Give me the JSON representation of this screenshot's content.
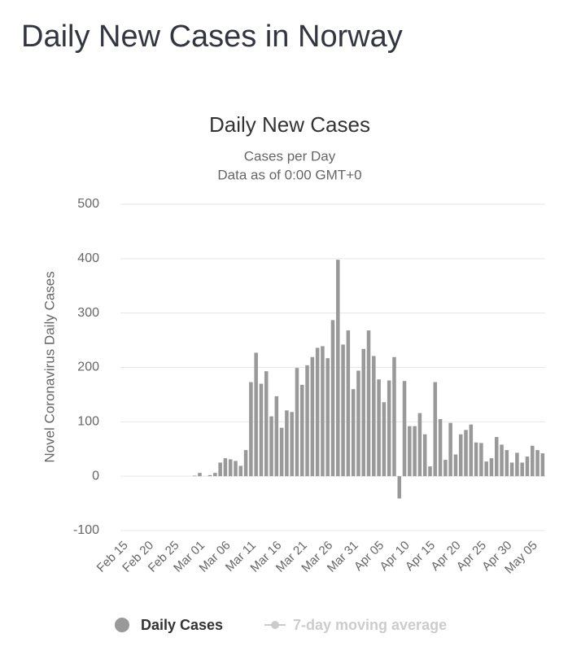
{
  "page_title": "Daily New Cases in Norway",
  "chart_data": {
    "type": "bar",
    "title": "Daily New Cases",
    "subtitle": [
      "Cases per Day",
      "Data as of 0:00 GMT+0"
    ],
    "y_label": "Novel Coronavirus Daily Cases",
    "categories": [
      "Feb 15",
      null,
      null,
      null,
      null,
      "Feb 20",
      null,
      null,
      null,
      null,
      "Feb 25",
      null,
      null,
      null,
      null,
      "Mar 01",
      null,
      null,
      null,
      null,
      "Mar 06",
      null,
      null,
      null,
      null,
      "Mar 11",
      null,
      null,
      null,
      null,
      "Mar 16",
      null,
      null,
      null,
      null,
      "Mar 21",
      null,
      null,
      null,
      null,
      "Mar 26",
      null,
      null,
      null,
      null,
      "Mar 31",
      null,
      null,
      null,
      null,
      "Apr 05",
      null,
      null,
      null,
      null,
      "Apr 10",
      null,
      null,
      null,
      null,
      "Apr 15",
      null,
      null,
      null,
      null,
      "Apr 20",
      null,
      null,
      null,
      null,
      "Apr 25",
      null,
      null,
      null,
      null,
      "Apr 30",
      null,
      null,
      null,
      null,
      "May 05",
      null,
      null
    ],
    "series": [
      {
        "name": "Daily Cases",
        "color": "#999999",
        "values": [
          0,
          0,
          0,
          0,
          0,
          0,
          0,
          0,
          0,
          0,
          0,
          0,
          0,
          0,
          1,
          6,
          0,
          2,
          6,
          25,
          33,
          31,
          28,
          19,
          48,
          173,
          227,
          170,
          193,
          110,
          147,
          89,
          121,
          118,
          199,
          168,
          204,
          219,
          236,
          239,
          217,
          287,
          398,
          242,
          268,
          160,
          194,
          234,
          268,
          221,
          178,
          136,
          176,
          219,
          -41,
          175,
          92,
          92,
          116,
          77,
          18,
          173,
          105,
          30,
          98,
          40,
          77,
          85,
          95,
          62,
          61,
          27,
          33,
          72,
          58,
          48,
          25,
          43,
          25,
          36,
          56,
          48,
          42
        ]
      },
      {
        "name": "7-day moving average",
        "color": "#cccccc",
        "visible": false
      }
    ],
    "ylim": [
      -100,
      500
    ],
    "yticks": [
      -100,
      0,
      100,
      200,
      300,
      400,
      500
    ],
    "grid": true
  }
}
